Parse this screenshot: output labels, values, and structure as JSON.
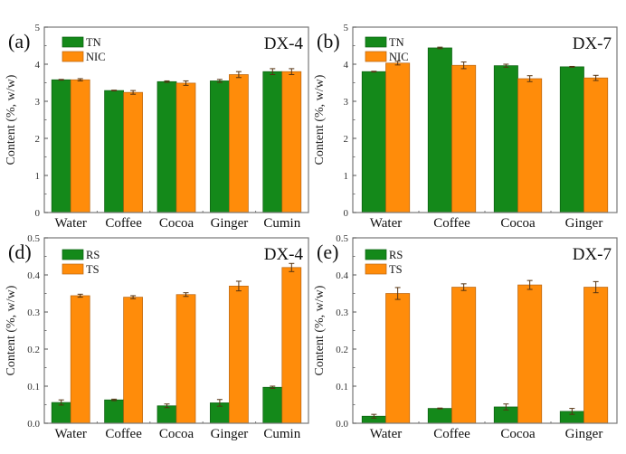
{
  "colors": {
    "green": "#14891a",
    "orange": "#ff8c0a",
    "green_edge": "#0b5e0f",
    "orange_edge": "#b86410",
    "errorbar": "#553311"
  },
  "chart_data": [
    {
      "id": "a",
      "type": "bar",
      "panel_label": "(a)",
      "title": "DX-4",
      "ylabel": "Content (%, w/w)",
      "xlabel": "",
      "ylim": [
        0,
        5
      ],
      "yticks": [
        0,
        1,
        2,
        3,
        4,
        5
      ],
      "ytick_labels": [
        "0",
        "1",
        "2",
        "3",
        "4",
        "5"
      ],
      "categories": [
        "Water",
        "Coffee",
        "Cocoa",
        "Ginger",
        "Cumin"
      ],
      "legend_position": "top-left",
      "series": [
        {
          "name": "TN",
          "color_key": "green",
          "values": [
            3.58,
            3.29,
            3.53,
            3.55,
            3.8
          ],
          "errors": [
            0.01,
            0.01,
            0.02,
            0.04,
            0.08
          ]
        },
        {
          "name": "NIC",
          "color_key": "orange",
          "values": [
            3.58,
            3.24,
            3.49,
            3.72,
            3.8
          ],
          "errors": [
            0.03,
            0.05,
            0.06,
            0.08,
            0.08
          ]
        }
      ]
    },
    {
      "id": "b",
      "type": "bar",
      "panel_label": "(b)",
      "title": "DX-7",
      "ylabel": "Content (%, w/w)",
      "xlabel": "",
      "ylim": [
        0,
        5
      ],
      "yticks": [
        0,
        1,
        2,
        3,
        4,
        5
      ],
      "ytick_labels": [
        "0",
        "1",
        "2",
        "3",
        "4",
        "5"
      ],
      "categories": [
        "Water",
        "Coffee",
        "Cocoa",
        "Ginger"
      ],
      "legend_position": "top-left",
      "series": [
        {
          "name": "TN",
          "color_key": "green",
          "values": [
            3.8,
            4.44,
            3.96,
            3.93
          ],
          "errors": [
            0.01,
            0.02,
            0.04,
            0.01
          ]
        },
        {
          "name": "NIC",
          "color_key": "orange",
          "values": [
            4.03,
            3.97,
            3.61,
            3.63
          ],
          "errors": [
            0.05,
            0.09,
            0.08,
            0.07
          ]
        }
      ]
    },
    {
      "id": "d",
      "type": "bar",
      "panel_label": "(d)",
      "title": "DX-4",
      "ylabel": "Content (%, w/w)",
      "xlabel": "",
      "ylim": [
        0,
        0.5
      ],
      "yticks": [
        0,
        0.1,
        0.2,
        0.3,
        0.4,
        0.5
      ],
      "ytick_labels": [
        "0.0",
        "0.1",
        "0.2",
        "0.3",
        "0.4",
        "0.5"
      ],
      "categories": [
        "Water",
        "Coffee",
        "Cocoa",
        "Ginger",
        "Cumin"
      ],
      "legend_position": "top-left",
      "series": [
        {
          "name": "RS",
          "color_key": "green",
          "values": [
            0.056,
            0.063,
            0.047,
            0.055,
            0.097
          ],
          "errors": [
            0.007,
            0.002,
            0.005,
            0.009,
            0.003
          ]
        },
        {
          "name": "TS",
          "color_key": "orange",
          "values": [
            0.344,
            0.34,
            0.347,
            0.37,
            0.42
          ],
          "errors": [
            0.004,
            0.004,
            0.005,
            0.013,
            0.011
          ]
        }
      ]
    },
    {
      "id": "e",
      "type": "bar",
      "panel_label": "(e)",
      "title": "DX-7",
      "ylabel": "Content (%, w/w)",
      "xlabel": "",
      "ylim": [
        0,
        0.5
      ],
      "yticks": [
        0,
        0.1,
        0.2,
        0.3,
        0.4,
        0.5
      ],
      "ytick_labels": [
        "0.0",
        "0.1",
        "0.2",
        "0.3",
        "0.4",
        "0.5"
      ],
      "categories": [
        "Water",
        "Coffee",
        "Cocoa",
        "Ginger"
      ],
      "legend_position": "top-left",
      "series": [
        {
          "name": "RS",
          "color_key": "green",
          "values": [
            0.019,
            0.04,
            0.044,
            0.032
          ],
          "errors": [
            0.005,
            0.001,
            0.008,
            0.008
          ]
        },
        {
          "name": "TS",
          "color_key": "orange",
          "values": [
            0.35,
            0.367,
            0.373,
            0.367
          ],
          "errors": [
            0.016,
            0.009,
            0.012,
            0.015
          ]
        }
      ]
    }
  ]
}
